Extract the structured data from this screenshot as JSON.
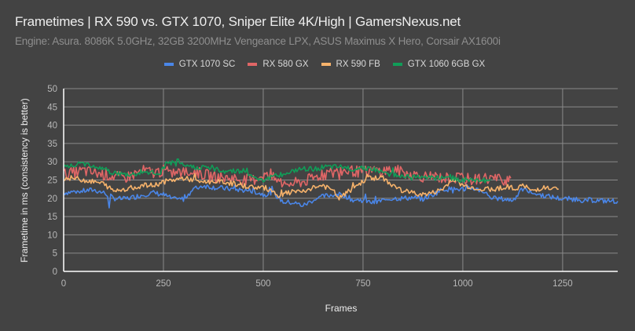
{
  "header": {
    "title": "Frametimes | RX 590 vs. GTX 1070, Sniper Elite 4K/High | GamersNexus.net",
    "subtitle": "Engine: Asura. 8086K 5.0GHz, 32GB 3200MHz Vengeance LPX, ASUS Maximus X Hero, Corsair AX1600i"
  },
  "legend": [
    {
      "label": "GTX 1070 SC",
      "color": "#4a86e8"
    },
    {
      "label": "RX 580 GX",
      "color": "#e06666"
    },
    {
      "label": "RX 590 FB",
      "color": "#f6b26b"
    },
    {
      "label": "GTX 1060 6GB GX",
      "color": "#109d58"
    }
  ],
  "axes": {
    "ylabel": "Frametime in ms (consistency is better)",
    "xlabel": "Frames",
    "yticks": [
      "0",
      "5",
      "10",
      "15",
      "20",
      "25",
      "30",
      "35",
      "40",
      "45",
      "50"
    ],
    "xticks": [
      "0",
      "250",
      "500",
      "750",
      "1000",
      "1250"
    ]
  },
  "chart_data": {
    "type": "line",
    "title": "Frametimes | RX 590 vs. GTX 1070, Sniper Elite 4K/High | GamersNexus.net",
    "subtitle": "Engine: Asura. 8086K 5.0GHz, 32GB 3200MHz Vengeance LPX, ASUS Maximus X Hero, Corsair AX1600i",
    "xlabel": "Frames",
    "ylabel": "Frametime in ms (consistency is better)",
    "xlim": [
      0,
      1388
    ],
    "ylim": [
      0,
      50
    ],
    "xticks": [
      0,
      250,
      500,
      750,
      1000,
      1250
    ],
    "yticks": [
      0,
      5,
      10,
      15,
      20,
      25,
      30,
      35,
      40,
      45,
      50
    ],
    "grid": true,
    "legend_position": "top",
    "series": [
      {
        "name": "GTX 1070 SC",
        "color": "#4a86e8",
        "x": [
          0,
          25,
          50,
          75,
          100,
          110,
          114,
          118,
          125,
          150,
          175,
          200,
          225,
          250,
          275,
          300,
          325,
          350,
          375,
          400,
          425,
          450,
          475,
          500,
          525,
          550,
          575,
          600,
          625,
          650,
          675,
          700,
          725,
          750,
          775,
          800,
          825,
          850,
          875,
          900,
          925,
          950,
          975,
          1000,
          1025,
          1050,
          1075,
          1100,
          1125,
          1150,
          1175,
          1200,
          1225,
          1250,
          1275,
          1300,
          1325,
          1350,
          1388
        ],
        "y": [
          21.5,
          21.8,
          22.0,
          22.3,
          21.5,
          21.0,
          17.0,
          20.5,
          20.0,
          19.8,
          20.3,
          21.0,
          21.5,
          21.0,
          19.7,
          19.8,
          22.5,
          23.5,
          23.0,
          22.7,
          22.5,
          22.2,
          22.0,
          21.0,
          21.5,
          19.0,
          18.8,
          18.0,
          19.5,
          20.5,
          21.0,
          21.0,
          19.5,
          19.5,
          18.7,
          19.5,
          20.0,
          20.0,
          20.2,
          19.8,
          21.0,
          22.5,
          22.5,
          22.5,
          22.8,
          22.0,
          20.0,
          19.8,
          19.5,
          22.5,
          21.5,
          20.8,
          20.3,
          19.8,
          19.8,
          19.5,
          19.5,
          19.3,
          19.2
        ]
      },
      {
        "name": "RX 580 GX",
        "color": "#e06666",
        "x": [
          0,
          25,
          50,
          75,
          100,
          125,
          150,
          175,
          200,
          225,
          250,
          275,
          300,
          325,
          350,
          375,
          400,
          425,
          450,
          475,
          500,
          525,
          550,
          575,
          600,
          625,
          650,
          675,
          700,
          725,
          750,
          775,
          800,
          825,
          850,
          875,
          900,
          925,
          950,
          975,
          1000,
          1025,
          1050,
          1075,
          1100,
          1120
        ],
        "y": [
          26.5,
          27.0,
          27.5,
          27.0,
          26.5,
          26.0,
          25.5,
          26.5,
          27.5,
          27.0,
          27.5,
          27.0,
          27.0,
          27.5,
          26.5,
          26.0,
          25.5,
          25.5,
          25.0,
          25.0,
          26.5,
          25.5,
          24.0,
          24.0,
          24.5,
          25.5,
          26.5,
          27.0,
          27.5,
          27.5,
          27.0,
          27.5,
          27.5,
          28.0,
          27.0,
          26.5,
          26.0,
          26.0,
          25.5,
          25.5,
          25.5,
          25.0,
          25.5,
          25.5,
          25.0,
          25.5
        ]
      },
      {
        "name": "RX 590 FB",
        "color": "#f6b26b",
        "x": [
          0,
          25,
          50,
          75,
          100,
          125,
          150,
          175,
          200,
          225,
          250,
          275,
          300,
          325,
          350,
          375,
          400,
          425,
          450,
          475,
          500,
          525,
          540,
          560,
          600,
          625,
          650,
          675,
          690,
          710,
          725,
          750,
          760,
          775,
          800,
          825,
          850,
          875,
          900,
          925,
          950,
          975,
          1000,
          1025,
          1050,
          1075,
          1100,
          1125,
          1150,
          1175,
          1200,
          1225,
          1240
        ],
        "y": [
          25.5,
          25.5,
          25.0,
          24.5,
          24.0,
          22.0,
          22.5,
          23.0,
          23.5,
          23.5,
          24.5,
          25.0,
          25.5,
          25.0,
          24.5,
          24.5,
          24.5,
          24.0,
          23.5,
          23.0,
          23.0,
          22.0,
          20.5,
          21.5,
          22.0,
          23.0,
          23.5,
          22.0,
          20.0,
          21.5,
          23.0,
          24.5,
          26.0,
          25.5,
          25.5,
          23.5,
          22.0,
          21.5,
          21.0,
          21.5,
          22.5,
          25.5,
          23.5,
          23.0,
          22.5,
          22.5,
          23.0,
          22.5,
          23.5,
          22.0,
          23.0,
          22.5,
          22.5
        ]
      },
      {
        "name": "GTX 1060 6GB GX",
        "color": "#109d58",
        "x": [
          0,
          25,
          50,
          75,
          100,
          125,
          150,
          175,
          200,
          225,
          240,
          260,
          275,
          300,
          325,
          350,
          375,
          400,
          425,
          450,
          475,
          500,
          525,
          550,
          575,
          600,
          625,
          650,
          675,
          700,
          725,
          750,
          775,
          800,
          825,
          850,
          875,
          900,
          925,
          950,
          975,
          1000,
          1025,
          1050,
          1070
        ],
        "y": [
          28.5,
          29.0,
          29.5,
          29.0,
          28.0,
          27.0,
          26.5,
          26.5,
          27.0,
          27.0,
          26.5,
          30.0,
          29.5,
          29.0,
          28.5,
          28.5,
          28.0,
          27.5,
          27.5,
          27.5,
          26.0,
          25.0,
          26.0,
          26.5,
          27.5,
          28.0,
          28.0,
          28.5,
          28.5,
          28.5,
          28.0,
          28.5,
          28.0,
          27.0,
          26.5,
          26.0,
          26.0,
          26.0,
          25.5,
          25.5,
          25.5,
          25.0,
          25.0,
          25.0,
          25.0
        ]
      }
    ]
  }
}
